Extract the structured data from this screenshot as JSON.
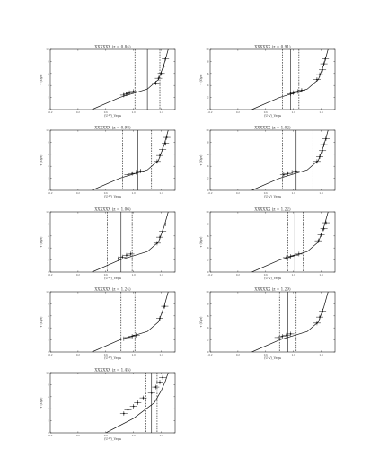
{
  "chart_data": [
    {
      "type": "scatter",
      "title": "XXXXXX (z = 0.84)",
      "xlabel": "(U-V)_Vega",
      "ylabel": "τ (Gyr)",
      "xlim": [
        -0.2,
        1.6
      ],
      "ylim": [
        0,
        10
      ],
      "xticks": [
        "-0.2",
        "0.2",
        "0.6",
        "1.0",
        "1.4"
      ],
      "yticks": [
        "0",
        "2",
        "4",
        "6",
        "8",
        "10"
      ],
      "vlines": [
        {
          "x": 1.02,
          "style": "dashed"
        },
        {
          "x": 1.2,
          "style": "solid"
        },
        {
          "x": 1.38,
          "style": "dashed"
        }
      ],
      "model_x": [
        0.4,
        0.8,
        1.2,
        1.36,
        1.44,
        1.5
      ],
      "model_y": [
        0.0,
        2.0,
        3.4,
        5.0,
        7.5,
        10.0
      ],
      "points": [
        {
          "x": 0.86,
          "y": 2.4
        },
        {
          "x": 0.9,
          "y": 2.6
        },
        {
          "x": 0.94,
          "y": 2.8
        },
        {
          "x": 1.0,
          "y": 3.0
        },
        {
          "x": 1.32,
          "y": 4.4
        },
        {
          "x": 1.36,
          "y": 5.2
        },
        {
          "x": 1.4,
          "y": 6.0
        },
        {
          "x": 1.44,
          "y": 7.2
        },
        {
          "x": 1.46,
          "y": 8.4
        }
      ]
    },
    {
      "type": "scatter",
      "title": "XXXXXX (z = 0.91)",
      "xlabel": "(U-V)_Vega",
      "ylabel": "τ (Gyr)",
      "xlim": [
        -0.2,
        1.6
      ],
      "ylim": [
        0,
        10
      ],
      "xticks": [
        "-0.2",
        "0.2",
        "0.6",
        "1.0",
        "1.4"
      ],
      "yticks": [
        "0",
        "2",
        "4",
        "6",
        "8",
        "10"
      ],
      "vlines": [
        {
          "x": 0.84,
          "style": "dashed"
        },
        {
          "x": 0.96,
          "style": "solid"
        },
        {
          "x": 1.08,
          "style": "dashed"
        }
      ],
      "model_x": [
        0.4,
        0.8,
        1.2,
        1.36,
        1.44,
        1.5
      ],
      "model_y": [
        0.0,
        2.0,
        3.4,
        5.0,
        7.5,
        10.0
      ],
      "points": [
        {
          "x": 0.96,
          "y": 2.6
        },
        {
          "x": 1.0,
          "y": 2.8
        },
        {
          "x": 1.06,
          "y": 3.0
        },
        {
          "x": 1.12,
          "y": 3.2
        },
        {
          "x": 1.34,
          "y": 5.0
        },
        {
          "x": 1.38,
          "y": 5.8
        },
        {
          "x": 1.42,
          "y": 6.6
        },
        {
          "x": 1.44,
          "y": 7.6
        },
        {
          "x": 1.46,
          "y": 8.4
        }
      ]
    },
    {
      "type": "scatter",
      "title": "XXXXXX (z = 0.98)",
      "xlabel": "(U-V)_Vega",
      "ylabel": "τ (Gyr)",
      "xlim": [
        -0.2,
        1.6
      ],
      "ylim": [
        0,
        10
      ],
      "xticks": [
        "-0.2",
        "0.2",
        "0.6",
        "1.0",
        "1.4"
      ],
      "yticks": [
        "0",
        "2",
        "4",
        "6",
        "8",
        "10"
      ],
      "vlines": [
        {
          "x": 0.84,
          "style": "dashed"
        },
        {
          "x": 1.06,
          "style": "solid"
        },
        {
          "x": 1.26,
          "style": "dashed"
        }
      ],
      "model_x": [
        0.4,
        0.8,
        1.2,
        1.36,
        1.44,
        1.5
      ],
      "model_y": [
        0.0,
        2.0,
        3.4,
        5.0,
        7.5,
        10.0
      ],
      "points": [
        {
          "x": 0.92,
          "y": 2.6
        },
        {
          "x": 0.98,
          "y": 2.8
        },
        {
          "x": 1.04,
          "y": 3.0
        },
        {
          "x": 1.1,
          "y": 3.2
        },
        {
          "x": 1.34,
          "y": 4.8
        },
        {
          "x": 1.38,
          "y": 5.8
        },
        {
          "x": 1.42,
          "y": 6.8
        },
        {
          "x": 1.46,
          "y": 7.8
        },
        {
          "x": 1.48,
          "y": 8.8
        }
      ]
    },
    {
      "type": "scatter",
      "title": "XXXXXX (z = 1.02)",
      "xlabel": "(U-V)_Vega",
      "ylabel": "τ (Gyr)",
      "xlim": [
        -0.2,
        1.6
      ],
      "ylim": [
        0,
        10
      ],
      "xticks": [
        "-0.2",
        "0.2",
        "0.6",
        "1.0",
        "1.4"
      ],
      "yticks": [
        "0",
        "2",
        "4",
        "6",
        "8",
        "10"
      ],
      "vlines": [
        {
          "x": 0.84,
          "style": "dashed"
        },
        {
          "x": 1.04,
          "style": "solid"
        },
        {
          "x": 1.28,
          "style": "dashed"
        }
      ],
      "model_x": [
        0.4,
        0.8,
        1.2,
        1.36,
        1.44,
        1.5
      ],
      "model_y": [
        0.0,
        2.0,
        3.4,
        5.0,
        7.5,
        10.0
      ],
      "points": [
        {
          "x": 0.86,
          "y": 2.6
        },
        {
          "x": 0.92,
          "y": 2.8
        },
        {
          "x": 0.98,
          "y": 3.0
        },
        {
          "x": 1.04,
          "y": 3.2
        },
        {
          "x": 1.34,
          "y": 4.8
        },
        {
          "x": 1.38,
          "y": 5.6
        },
        {
          "x": 1.42,
          "y": 6.6
        },
        {
          "x": 1.44,
          "y": 7.6
        },
        {
          "x": 1.47,
          "y": 8.6
        }
      ]
    },
    {
      "type": "scatter",
      "title": "XXXXXX (z = 1.06)",
      "xlabel": "(U-V)_Vega",
      "ylabel": "τ (Gyr)",
      "xlim": [
        -0.2,
        1.6
      ],
      "ylim": [
        0,
        10
      ],
      "xticks": [
        "-0.2",
        "0.2",
        "0.6",
        "1.0",
        "1.4"
      ],
      "yticks": [
        "0",
        "2",
        "4",
        "6",
        "8",
        "10"
      ],
      "vlines": [
        {
          "x": 0.62,
          "style": "dashed"
        },
        {
          "x": 0.82,
          "style": "solid"
        },
        {
          "x": 0.98,
          "style": "dashed"
        }
      ],
      "model_x": [
        0.4,
        0.8,
        1.2,
        1.36,
        1.44,
        1.5
      ],
      "model_y": [
        0.0,
        2.0,
        3.4,
        5.0,
        7.5,
        10.0
      ],
      "points": [
        {
          "x": 0.78,
          "y": 2.2
        },
        {
          "x": 0.84,
          "y": 2.5
        },
        {
          "x": 0.9,
          "y": 2.8
        },
        {
          "x": 0.96,
          "y": 3.0
        },
        {
          "x": 1.34,
          "y": 4.8
        },
        {
          "x": 1.38,
          "y": 5.8
        },
        {
          "x": 1.42,
          "y": 6.8
        },
        {
          "x": 1.46,
          "y": 8.0
        }
      ]
    },
    {
      "type": "scatter",
      "title": "XXXXXX (z = 1.22)",
      "xlabel": "(U-V)_Vega",
      "ylabel": "τ (Gyr)",
      "xlim": [
        -0.2,
        1.6
      ],
      "ylim": [
        0,
        10
      ],
      "xticks": [
        "-0.2",
        "0.2",
        "0.6",
        "1.0",
        "1.4"
      ],
      "yticks": [
        "0",
        "2",
        "4",
        "6",
        "8",
        "10"
      ],
      "vlines": [
        {
          "x": 0.92,
          "style": "dashed"
        },
        {
          "x": 1.02,
          "style": "solid"
        },
        {
          "x": 1.14,
          "style": "dashed"
        }
      ],
      "model_x": [
        0.4,
        0.8,
        1.2,
        1.36,
        1.44,
        1.5
      ],
      "model_y": [
        0.0,
        2.0,
        3.4,
        5.0,
        7.5,
        10.0
      ],
      "points": [
        {
          "x": 0.9,
          "y": 2.4
        },
        {
          "x": 0.96,
          "y": 2.6
        },
        {
          "x": 1.02,
          "y": 2.8
        },
        {
          "x": 1.08,
          "y": 3.0
        },
        {
          "x": 1.36,
          "y": 5.2
        },
        {
          "x": 1.4,
          "y": 6.2
        },
        {
          "x": 1.44,
          "y": 7.2
        },
        {
          "x": 1.47,
          "y": 8.2
        }
      ]
    },
    {
      "type": "scatter",
      "title": "XXXXXX (z = 1.24)",
      "xlabel": "(U-V)_Vega",
      "ylabel": "τ (Gyr)",
      "xlim": [
        -0.2,
        1.6
      ],
      "ylim": [
        0,
        10
      ],
      "xticks": [
        "-0.2",
        "0.2",
        "0.6",
        "1.0",
        "1.4"
      ],
      "yticks": [
        "0",
        "2",
        "4",
        "6",
        "8",
        "10"
      ],
      "vlines": [
        {
          "x": 0.82,
          "style": "dashed"
        },
        {
          "x": 0.92,
          "style": "solid"
        },
        {
          "x": 1.02,
          "style": "dashed"
        }
      ],
      "model_x": [
        0.4,
        0.8,
        1.2,
        1.36,
        1.44,
        1.5
      ],
      "model_y": [
        0.0,
        2.0,
        3.4,
        5.0,
        7.5,
        10.0
      ],
      "points": [
        {
          "x": 0.86,
          "y": 2.2
        },
        {
          "x": 0.92,
          "y": 2.4
        },
        {
          "x": 0.98,
          "y": 2.6
        },
        {
          "x": 1.04,
          "y": 2.8
        },
        {
          "x": 1.38,
          "y": 5.6
        },
        {
          "x": 1.42,
          "y": 6.6
        },
        {
          "x": 1.45,
          "y": 7.6
        }
      ]
    },
    {
      "type": "scatter",
      "title": "XXXXXX (z = 1.29)",
      "xlabel": "(U-V)_Vega",
      "ylabel": "τ (Gyr)",
      "xlim": [
        -0.2,
        1.6
      ],
      "ylim": [
        0,
        10
      ],
      "xticks": [
        "-0.2",
        "0.2",
        "0.6",
        "1.0",
        "1.4"
      ],
      "yticks": [
        "0",
        "2",
        "4",
        "6",
        "8",
        "10"
      ],
      "vlines": [
        {
          "x": 0.8,
          "style": "dashed"
        },
        {
          "x": 0.92,
          "style": "solid"
        },
        {
          "x": 1.04,
          "style": "dashed"
        }
      ],
      "model_x": [
        0.4,
        0.8,
        1.2,
        1.36,
        1.44,
        1.5
      ],
      "model_y": [
        0.0,
        2.0,
        3.4,
        5.0,
        7.5,
        10.0
      ],
      "points": [
        {
          "x": 0.78,
          "y": 2.4
        },
        {
          "x": 0.84,
          "y": 2.6
        },
        {
          "x": 0.9,
          "y": 2.8
        },
        {
          "x": 0.96,
          "y": 3.0
        },
        {
          "x": 1.34,
          "y": 4.8
        },
        {
          "x": 1.38,
          "y": 5.8
        },
        {
          "x": 1.42,
          "y": 6.8
        }
      ]
    },
    {
      "type": "scatter",
      "title": "XXXXXX (z = 1.45)",
      "xlabel": "(U-V)_Vega",
      "ylabel": "τ (Gyr)",
      "xlim": [
        -0.2,
        1.6
      ],
      "ylim": [
        0,
        10
      ],
      "xticks": [
        "-0.2",
        "0.2",
        "0.6",
        "1.0",
        "1.4"
      ],
      "yticks": [
        "0",
        "2",
        "4",
        "6",
        "8",
        "10"
      ],
      "vlines": [
        {
          "x": 1.18,
          "style": "dashed"
        },
        {
          "x": 1.26,
          "style": "solid"
        },
        {
          "x": 1.34,
          "style": "dashed"
        }
      ],
      "model_x": [
        0.6,
        1.0,
        1.3,
        1.4,
        1.46,
        1.5
      ],
      "model_y": [
        0.0,
        2.4,
        5.0,
        7.0,
        8.6,
        10.0
      ],
      "points": [
        {
          "x": 0.86,
          "y": 3.2
        },
        {
          "x": 0.92,
          "y": 3.8
        },
        {
          "x": 1.0,
          "y": 4.4
        },
        {
          "x": 1.06,
          "y": 5.0
        },
        {
          "x": 1.14,
          "y": 5.8
        },
        {
          "x": 1.26,
          "y": 6.6
        },
        {
          "x": 1.32,
          "y": 7.6
        },
        {
          "x": 1.38,
          "y": 8.4
        },
        {
          "x": 1.42,
          "y": 9.2
        }
      ]
    }
  ]
}
